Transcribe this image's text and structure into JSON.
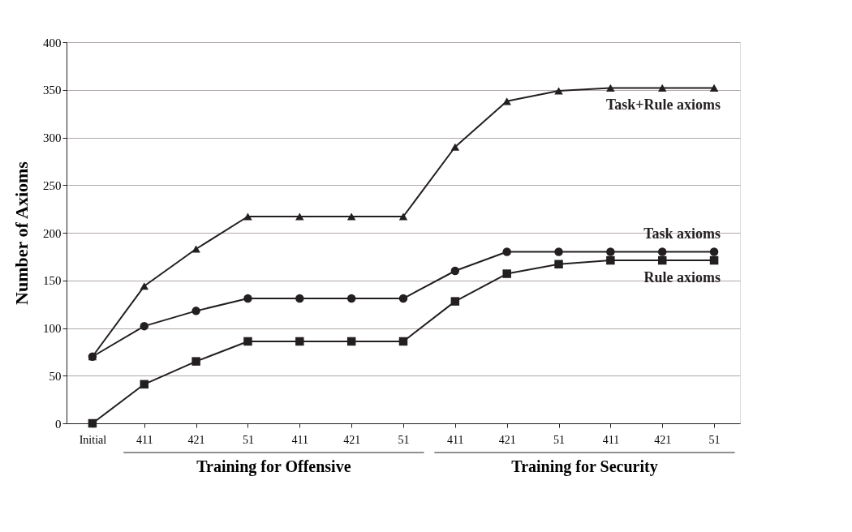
{
  "chart_data": {
    "type": "line",
    "ylabel": "Number of Axioms",
    "categories": [
      "Initial",
      "411",
      "421",
      "51",
      "411",
      "421",
      "51",
      "411",
      "421",
      "51",
      "411",
      "421",
      "51"
    ],
    "series": [
      {
        "name": "Task+Rule axioms",
        "color": "#231f20",
        "marker": "triangle",
        "values": [
          70,
          144,
          183,
          217,
          217,
          217,
          217,
          290,
          338,
          349,
          352,
          352,
          352
        ]
      },
      {
        "name": "Task axioms",
        "color": "#231f20",
        "marker": "circle",
        "values": [
          70,
          102,
          118,
          131,
          131,
          131,
          131,
          160,
          180,
          180,
          180,
          180,
          180
        ]
      },
      {
        "name": "Rule axioms",
        "color": "#231f20",
        "marker": "square",
        "values": [
          0,
          41,
          65,
          86,
          86,
          86,
          86,
          128,
          157,
          167,
          171,
          171,
          171
        ]
      }
    ],
    "ylim": [
      0,
      400
    ],
    "yticks": [
      0,
      50,
      100,
      150,
      200,
      250,
      300,
      350,
      400
    ],
    "grid": "y",
    "legend": false,
    "line_style": "solid",
    "annotations": [
      "Training for Offensive",
      "Training for Security"
    ]
  }
}
